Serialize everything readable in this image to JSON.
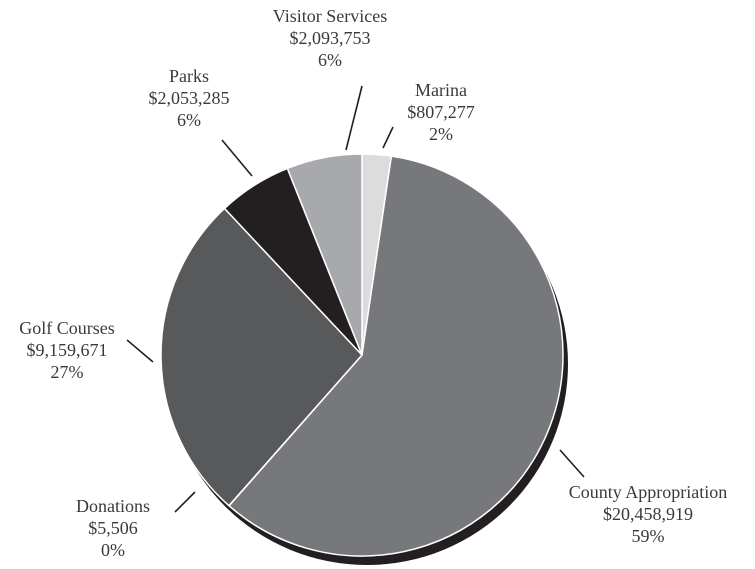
{
  "chart_data": {
    "type": "pie",
    "categories": [
      "Marina",
      "County Appropriation",
      "Donations",
      "Golf Courses",
      "Parks",
      "Visitor Services"
    ],
    "values": [
      807277,
      20458919,
      5506,
      9159671,
      2053285,
      2093753
    ],
    "value_labels": [
      "$807,277",
      "$20,458,919",
      "$5,506",
      "$9,159,671",
      "$2,053,285",
      "$2,093,753"
    ],
    "percent_labels": [
      "2%",
      "59%",
      "0%",
      "27%",
      "6%",
      "6%"
    ],
    "colors": [
      "#dcdcdd",
      "#77787b",
      "#231f20",
      "#58595b",
      "#231f20",
      "#a7a9ac"
    ]
  }
}
